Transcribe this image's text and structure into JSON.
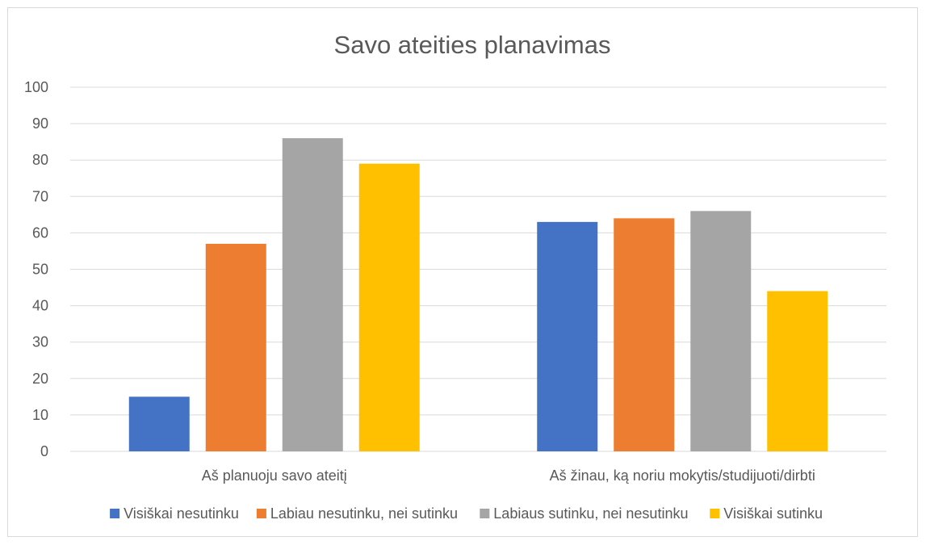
{
  "chart_data": {
    "type": "bar",
    "title": "Savo ateities planavimas",
    "xlabel": "",
    "ylabel": "",
    "ylim": [
      0,
      100
    ],
    "yticks": [
      0,
      10,
      20,
      30,
      40,
      50,
      60,
      70,
      80,
      90,
      100
    ],
    "grid": true,
    "legend_position": "bottom",
    "categories": [
      "Aš planuoju savo ateitį",
      "Aš žinau, ką noriu mokytis/studijuoti/dirbti"
    ],
    "series": [
      {
        "name": "Visiškai nesutinku",
        "color": "#4472c4",
        "values": [
          15,
          63
        ]
      },
      {
        "name": "Labiau nesutinku, nei sutinku",
        "color": "#ed7d31",
        "values": [
          57,
          64
        ]
      },
      {
        "name": "Labiaus sutinku, nei nesutinku",
        "color": "#a5a5a5",
        "values": [
          86,
          66
        ]
      },
      {
        "name": "Visiškai sutinku",
        "color": "#ffc000",
        "values": [
          79,
          44
        ]
      }
    ]
  }
}
